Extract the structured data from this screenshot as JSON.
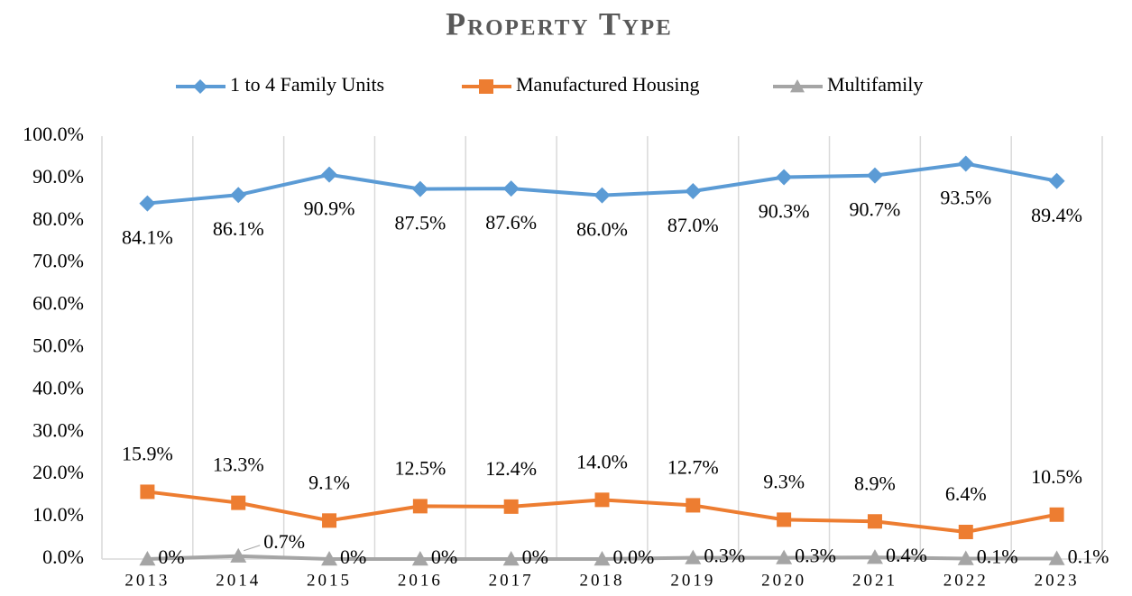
{
  "chart_data": {
    "type": "line",
    "title": "Property Type",
    "categories": [
      "2013",
      "2014",
      "2015",
      "2016",
      "2017",
      "2018",
      "2019",
      "2020",
      "2021",
      "2022",
      "2023"
    ],
    "series": [
      {
        "name": "1 to 4 Family Units",
        "color": "#5b9bd5",
        "marker": "diamond",
        "values": [
          84.1,
          86.1,
          90.9,
          87.5,
          87.6,
          86.0,
          87.0,
          90.3,
          90.7,
          93.5,
          89.4
        ],
        "value_labels": [
          "84.1%",
          "86.1%",
          "90.9%",
          "87.5%",
          "87.6%",
          "86.0%",
          "87.0%",
          "90.3%",
          "90.7%",
          "93.5%",
          "89.4%"
        ]
      },
      {
        "name": "Manufactured Housing",
        "color": "#ed7d31",
        "marker": "square",
        "values": [
          15.9,
          13.3,
          9.1,
          12.5,
          12.4,
          14.0,
          12.7,
          9.3,
          8.9,
          6.4,
          10.5
        ],
        "value_labels": [
          "15.9%",
          "13.3%",
          "9.1%",
          "12.5%",
          "12.4%",
          "14.0%",
          "12.7%",
          "9.3%",
          "8.9%",
          "6.4%",
          "10.5%"
        ]
      },
      {
        "name": "Multifamily",
        "color": "#a5a5a5",
        "marker": "triangle",
        "values": [
          0,
          0.7,
          0,
          0,
          0,
          0.0,
          0.3,
          0.3,
          0.4,
          0.1,
          0.1
        ],
        "value_labels": [
          "0%",
          "0.7%",
          "0%",
          "0%",
          "0%",
          "0.0%",
          "0.3%",
          "0.3%",
          "0.4%",
          "0.1%",
          "0.1%"
        ]
      }
    ],
    "ylim": [
      0,
      100
    ],
    "yticks": [
      {
        "value": 0,
        "label": "0.0%"
      },
      {
        "value": 10,
        "label": "10.0%"
      },
      {
        "value": 20,
        "label": "20.0%"
      },
      {
        "value": 30,
        "label": "30.0%"
      },
      {
        "value": 40,
        "label": "40.0%"
      },
      {
        "value": 50,
        "label": "50.0%"
      },
      {
        "value": 60,
        "label": "60.0%"
      },
      {
        "value": 70,
        "label": "70.0%"
      },
      {
        "value": 80,
        "label": "80.0%"
      },
      {
        "value": 90,
        "label": "90.0%"
      },
      {
        "value": 100,
        "label": "100.0%"
      }
    ],
    "legend": "top"
  }
}
